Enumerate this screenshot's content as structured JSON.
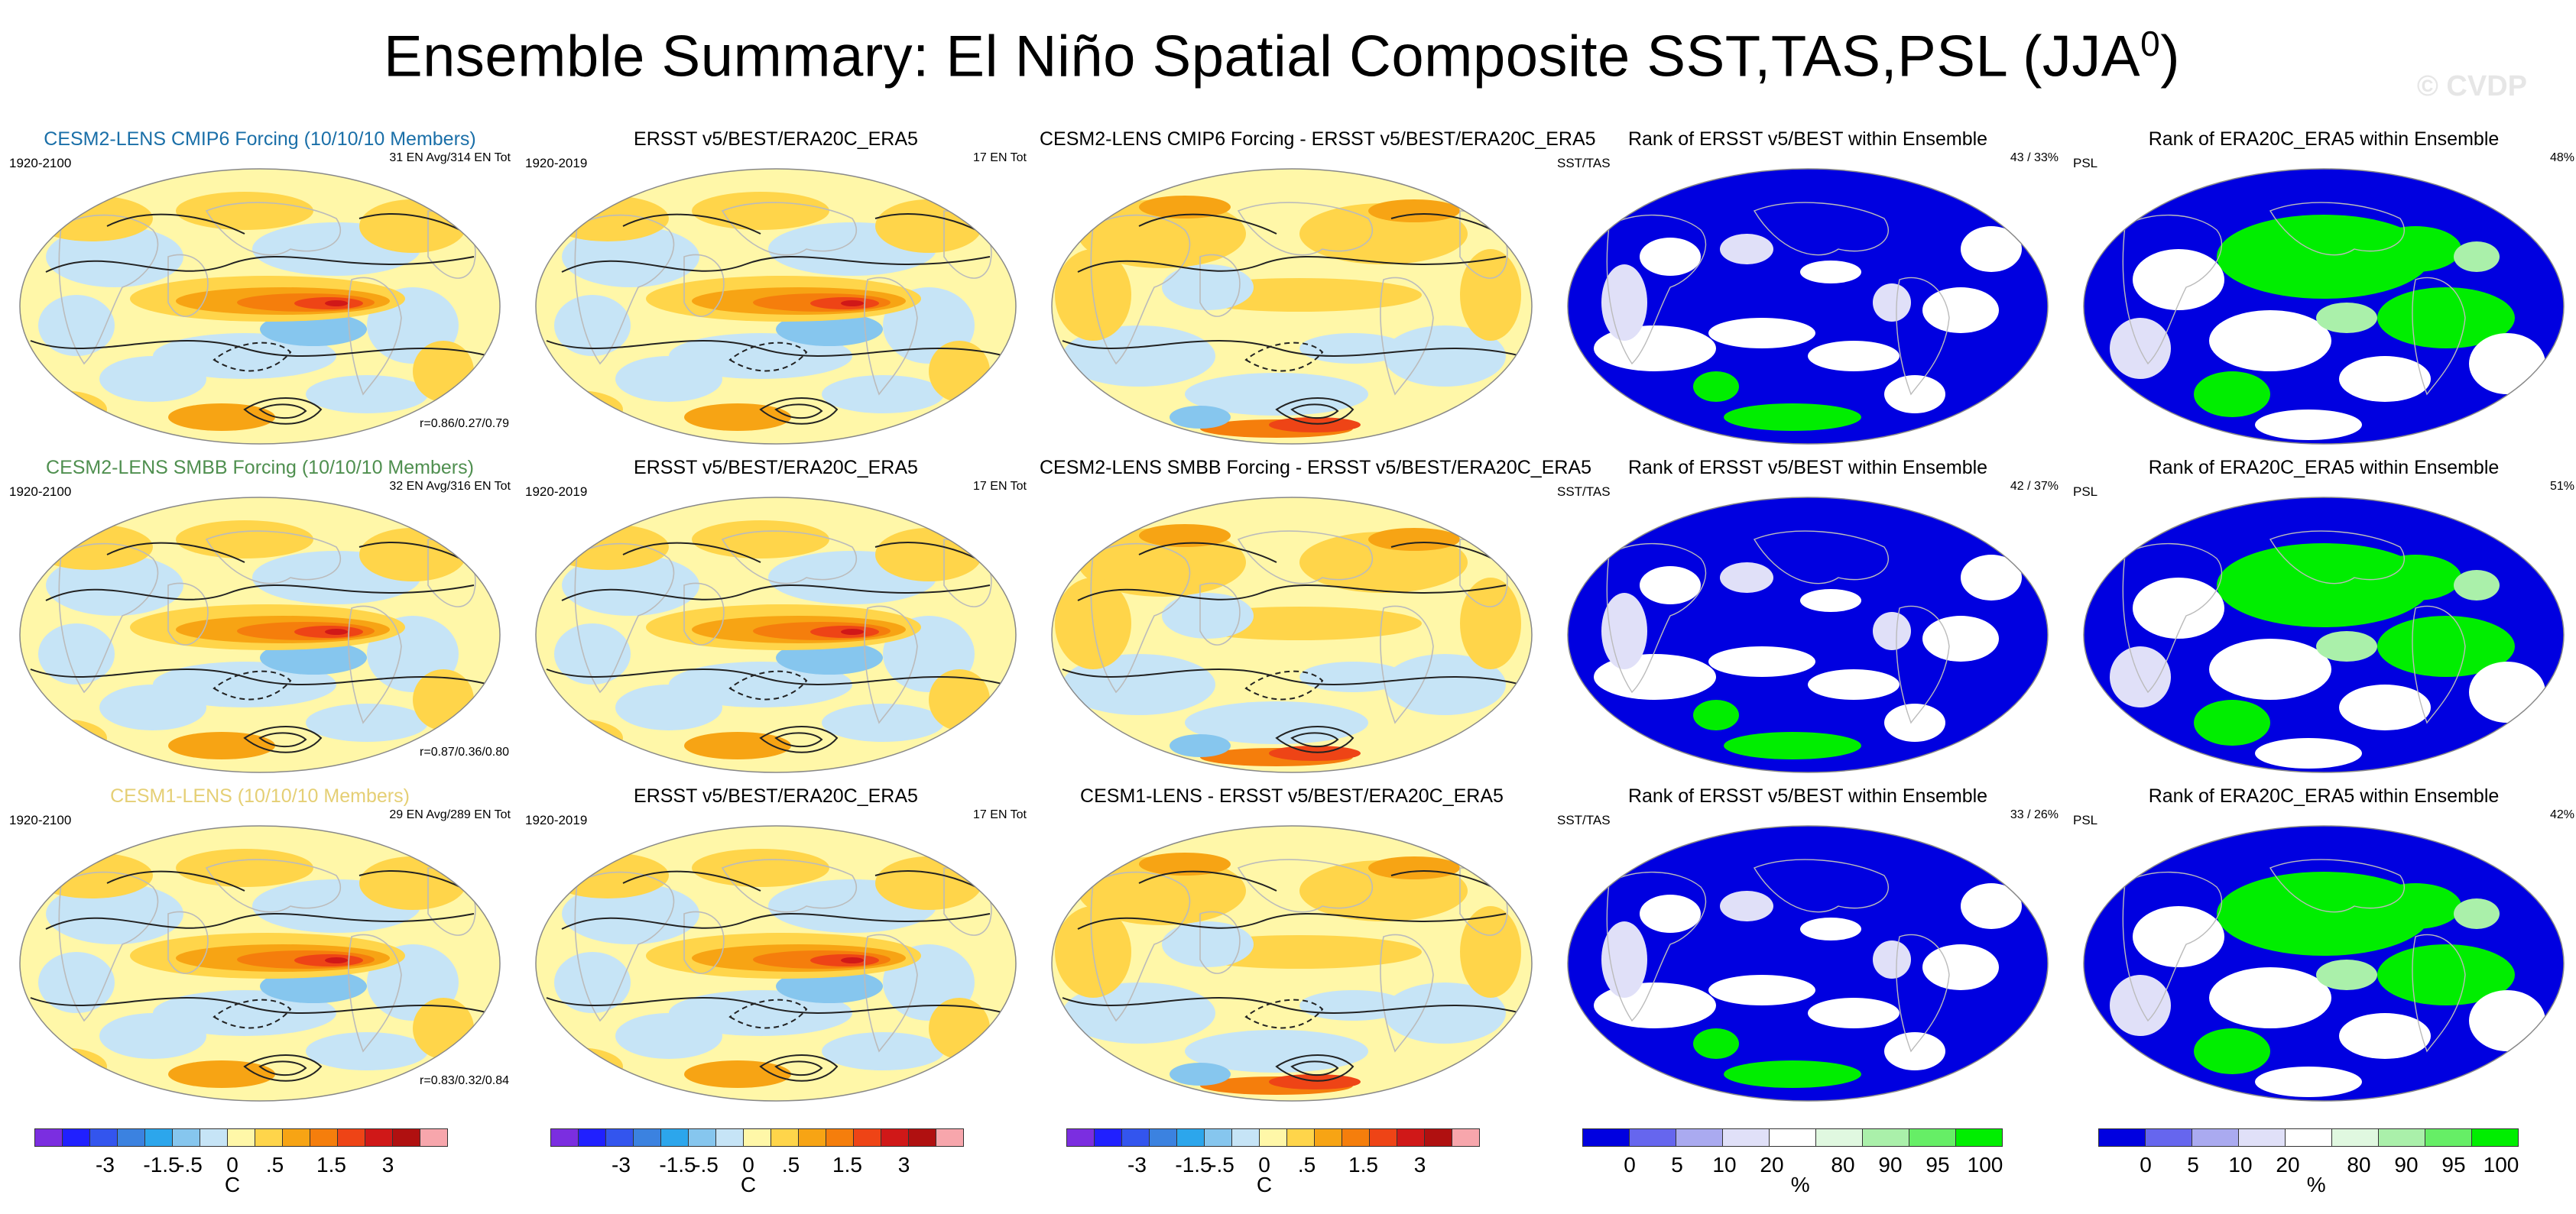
{
  "title_main": "Ensemble Summary: El Niño Spatial Composite SST,TAS,PSL (JJA",
  "title_sup": "0",
  "title_close": ")",
  "watermark": "© CVDP",
  "colors": {
    "cesm2_cmip6": "#1a6fa8",
    "cesm2_smbb": "#4f8f4f",
    "cesm1": "#e5cf75",
    "land_outline": "#bbbbbb",
    "contour": "#222222",
    "rank_low": "#0000e0",
    "rank_high": "#00ee00"
  },
  "rows": [
    {
      "cols": [
        {
          "kind": "sst",
          "title": "CESM2-LENS CMIP6 Forcing (10/10/10 Members)",
          "title_color": "#1a6fa8",
          "left": "1920-2100",
          "right": "31 EN Avg/314 EN Tot",
          "corr": "r=0.86/0.27/0.79"
        },
        {
          "kind": "sst",
          "title": "ERSST v5/BEST/ERA20C_ERA5",
          "title_color": "#000000",
          "left": "1920-2019",
          "right": "17 EN Tot",
          "corr": ""
        },
        {
          "kind": "diff",
          "title": "CESM2-LENS CMIP6 Forcing - ERSST v5/BEST/ERA20C_ERA5",
          "title_color": "#000000",
          "left": "",
          "right": "",
          "corr": ""
        },
        {
          "kind": "rank",
          "title": "Rank of ERSST v5/BEST within Ensemble",
          "title_color": "#000000",
          "left": "SST/TAS",
          "right": "43 /  33%",
          "corr": ""
        },
        {
          "kind": "rankpsl",
          "title": "Rank of ERA20C_ERA5 within Ensemble",
          "title_color": "#000000",
          "left": "PSL",
          "right": "48%",
          "corr": ""
        }
      ]
    },
    {
      "cols": [
        {
          "kind": "sst",
          "title": "CESM2-LENS SMBB Forcing (10/10/10 Members)",
          "title_color": "#4f8f4f",
          "left": "1920-2100",
          "right": "32 EN Avg/316 EN Tot",
          "corr": "r=0.87/0.36/0.80"
        },
        {
          "kind": "sst",
          "title": "ERSST v5/BEST/ERA20C_ERA5",
          "title_color": "#000000",
          "left": "1920-2019",
          "right": "17 EN Tot",
          "corr": ""
        },
        {
          "kind": "diff",
          "title": "CESM2-LENS SMBB Forcing - ERSST v5/BEST/ERA20C_ERA5",
          "title_color": "#000000",
          "left": "",
          "right": "",
          "corr": ""
        },
        {
          "kind": "rank",
          "title": "Rank of ERSST v5/BEST within Ensemble",
          "title_color": "#000000",
          "left": "SST/TAS",
          "right": "42 /  37%",
          "corr": ""
        },
        {
          "kind": "rankpsl",
          "title": "Rank of ERA20C_ERA5 within Ensemble",
          "title_color": "#000000",
          "left": "PSL",
          "right": "51%",
          "corr": ""
        }
      ]
    },
    {
      "cols": [
        {
          "kind": "sst",
          "title": "CESM1-LENS (10/10/10 Members)",
          "title_color": "#e5cf75",
          "left": "1920-2100",
          "right": "29 EN Avg/289 EN Tot",
          "corr": "r=0.83/0.32/0.84"
        },
        {
          "kind": "sst",
          "title": "ERSST v5/BEST/ERA20C_ERA5",
          "title_color": "#000000",
          "left": "1920-2019",
          "right": "17 EN Tot",
          "corr": ""
        },
        {
          "kind": "diff",
          "title": "CESM1-LENS - ERSST v5/BEST/ERA20C_ERA5",
          "title_color": "#000000",
          "left": "",
          "right": "",
          "corr": ""
        },
        {
          "kind": "rank",
          "title": "Rank of ERSST v5/BEST within Ensemble",
          "title_color": "#000000",
          "left": "SST/TAS",
          "right": "33 /  26%",
          "corr": ""
        },
        {
          "kind": "rankpsl",
          "title": "Rank of ERA20C_ERA5 within Ensemble",
          "title_color": "#000000",
          "left": "PSL",
          "right": "42%",
          "corr": ""
        }
      ]
    }
  ],
  "colorbars": [
    {
      "unit": "C",
      "labels": [
        "-3",
        "-1.5",
        "-.5",
        "0",
        ".5",
        "1.5",
        "3"
      ],
      "colors": [
        "#7b2ee0",
        "#2020ff",
        "#3355ee",
        "#3b82e0",
        "#2ca6ec",
        "#86c6ee",
        "#c6e4f6",
        "#fff7a8",
        "#ffd54a",
        "#f7a414",
        "#f57e0c",
        "#ee4416",
        "#d01818",
        "#b01010",
        "#f7a6ac"
      ]
    },
    {
      "unit": "C",
      "labels": [
        "-3",
        "-1.5",
        "-.5",
        "0",
        ".5",
        "1.5",
        "3"
      ],
      "colors": [
        "#7b2ee0",
        "#2020ff",
        "#3355ee",
        "#3b82e0",
        "#2ca6ec",
        "#86c6ee",
        "#c6e4f6",
        "#fff7a8",
        "#ffd54a",
        "#f7a414",
        "#f57e0c",
        "#ee4416",
        "#d01818",
        "#b01010",
        "#f7a6ac"
      ]
    },
    {
      "unit": "C",
      "labels": [
        "-3",
        "-1.5",
        "-.5",
        "0",
        ".5",
        "1.5",
        "3"
      ],
      "colors": [
        "#7b2ee0",
        "#2020ff",
        "#3355ee",
        "#3b82e0",
        "#2ca6ec",
        "#86c6ee",
        "#c6e4f6",
        "#fff7a8",
        "#ffd54a",
        "#f7a414",
        "#f57e0c",
        "#ee4416",
        "#d01818",
        "#b01010",
        "#f7a6ac"
      ]
    },
    {
      "unit": "%",
      "labels": [
        "0",
        "5",
        "10",
        "20",
        "80",
        "90",
        "95",
        "100"
      ],
      "colors": [
        "#0000e0",
        "#6666ee",
        "#aaaaf0",
        "#e0e0f8",
        "#ffffff",
        "#e0f8e0",
        "#aaf0aa",
        "#66ee66",
        "#00ee00"
      ]
    },
    {
      "unit": "%",
      "labels": [
        "0",
        "5",
        "10",
        "20",
        "80",
        "90",
        "95",
        "100"
      ],
      "colors": [
        "#0000e0",
        "#6666ee",
        "#aaaaf0",
        "#e0e0f8",
        "#ffffff",
        "#e0f8e0",
        "#aaf0aa",
        "#66ee66",
        "#00ee00"
      ]
    }
  ],
  "chart_data": {
    "type": "heatmap",
    "title": "Ensemble Summary: El Niño Spatial Composite SST,TAS,PSL (JJA0)",
    "panels_layout": "3 rows x 5 columns",
    "sst_levels": [
      -3,
      -1.5,
      -0.5,
      0,
      0.5,
      1.5,
      3
    ],
    "rank_levels": [
      0,
      5,
      10,
      20,
      80,
      90,
      95,
      100
    ],
    "units": [
      "C",
      "%"
    ],
    "pattern_correlations": [
      "0.86/0.27/0.79",
      "0.87/0.36/0.80",
      "0.83/0.32/0.84"
    ],
    "ranks_sst_tas": [
      "43 / 33%",
      "42 / 37%",
      "33 / 26%"
    ],
    "ranks_psl": [
      "48%",
      "51%",
      "42%"
    ]
  }
}
